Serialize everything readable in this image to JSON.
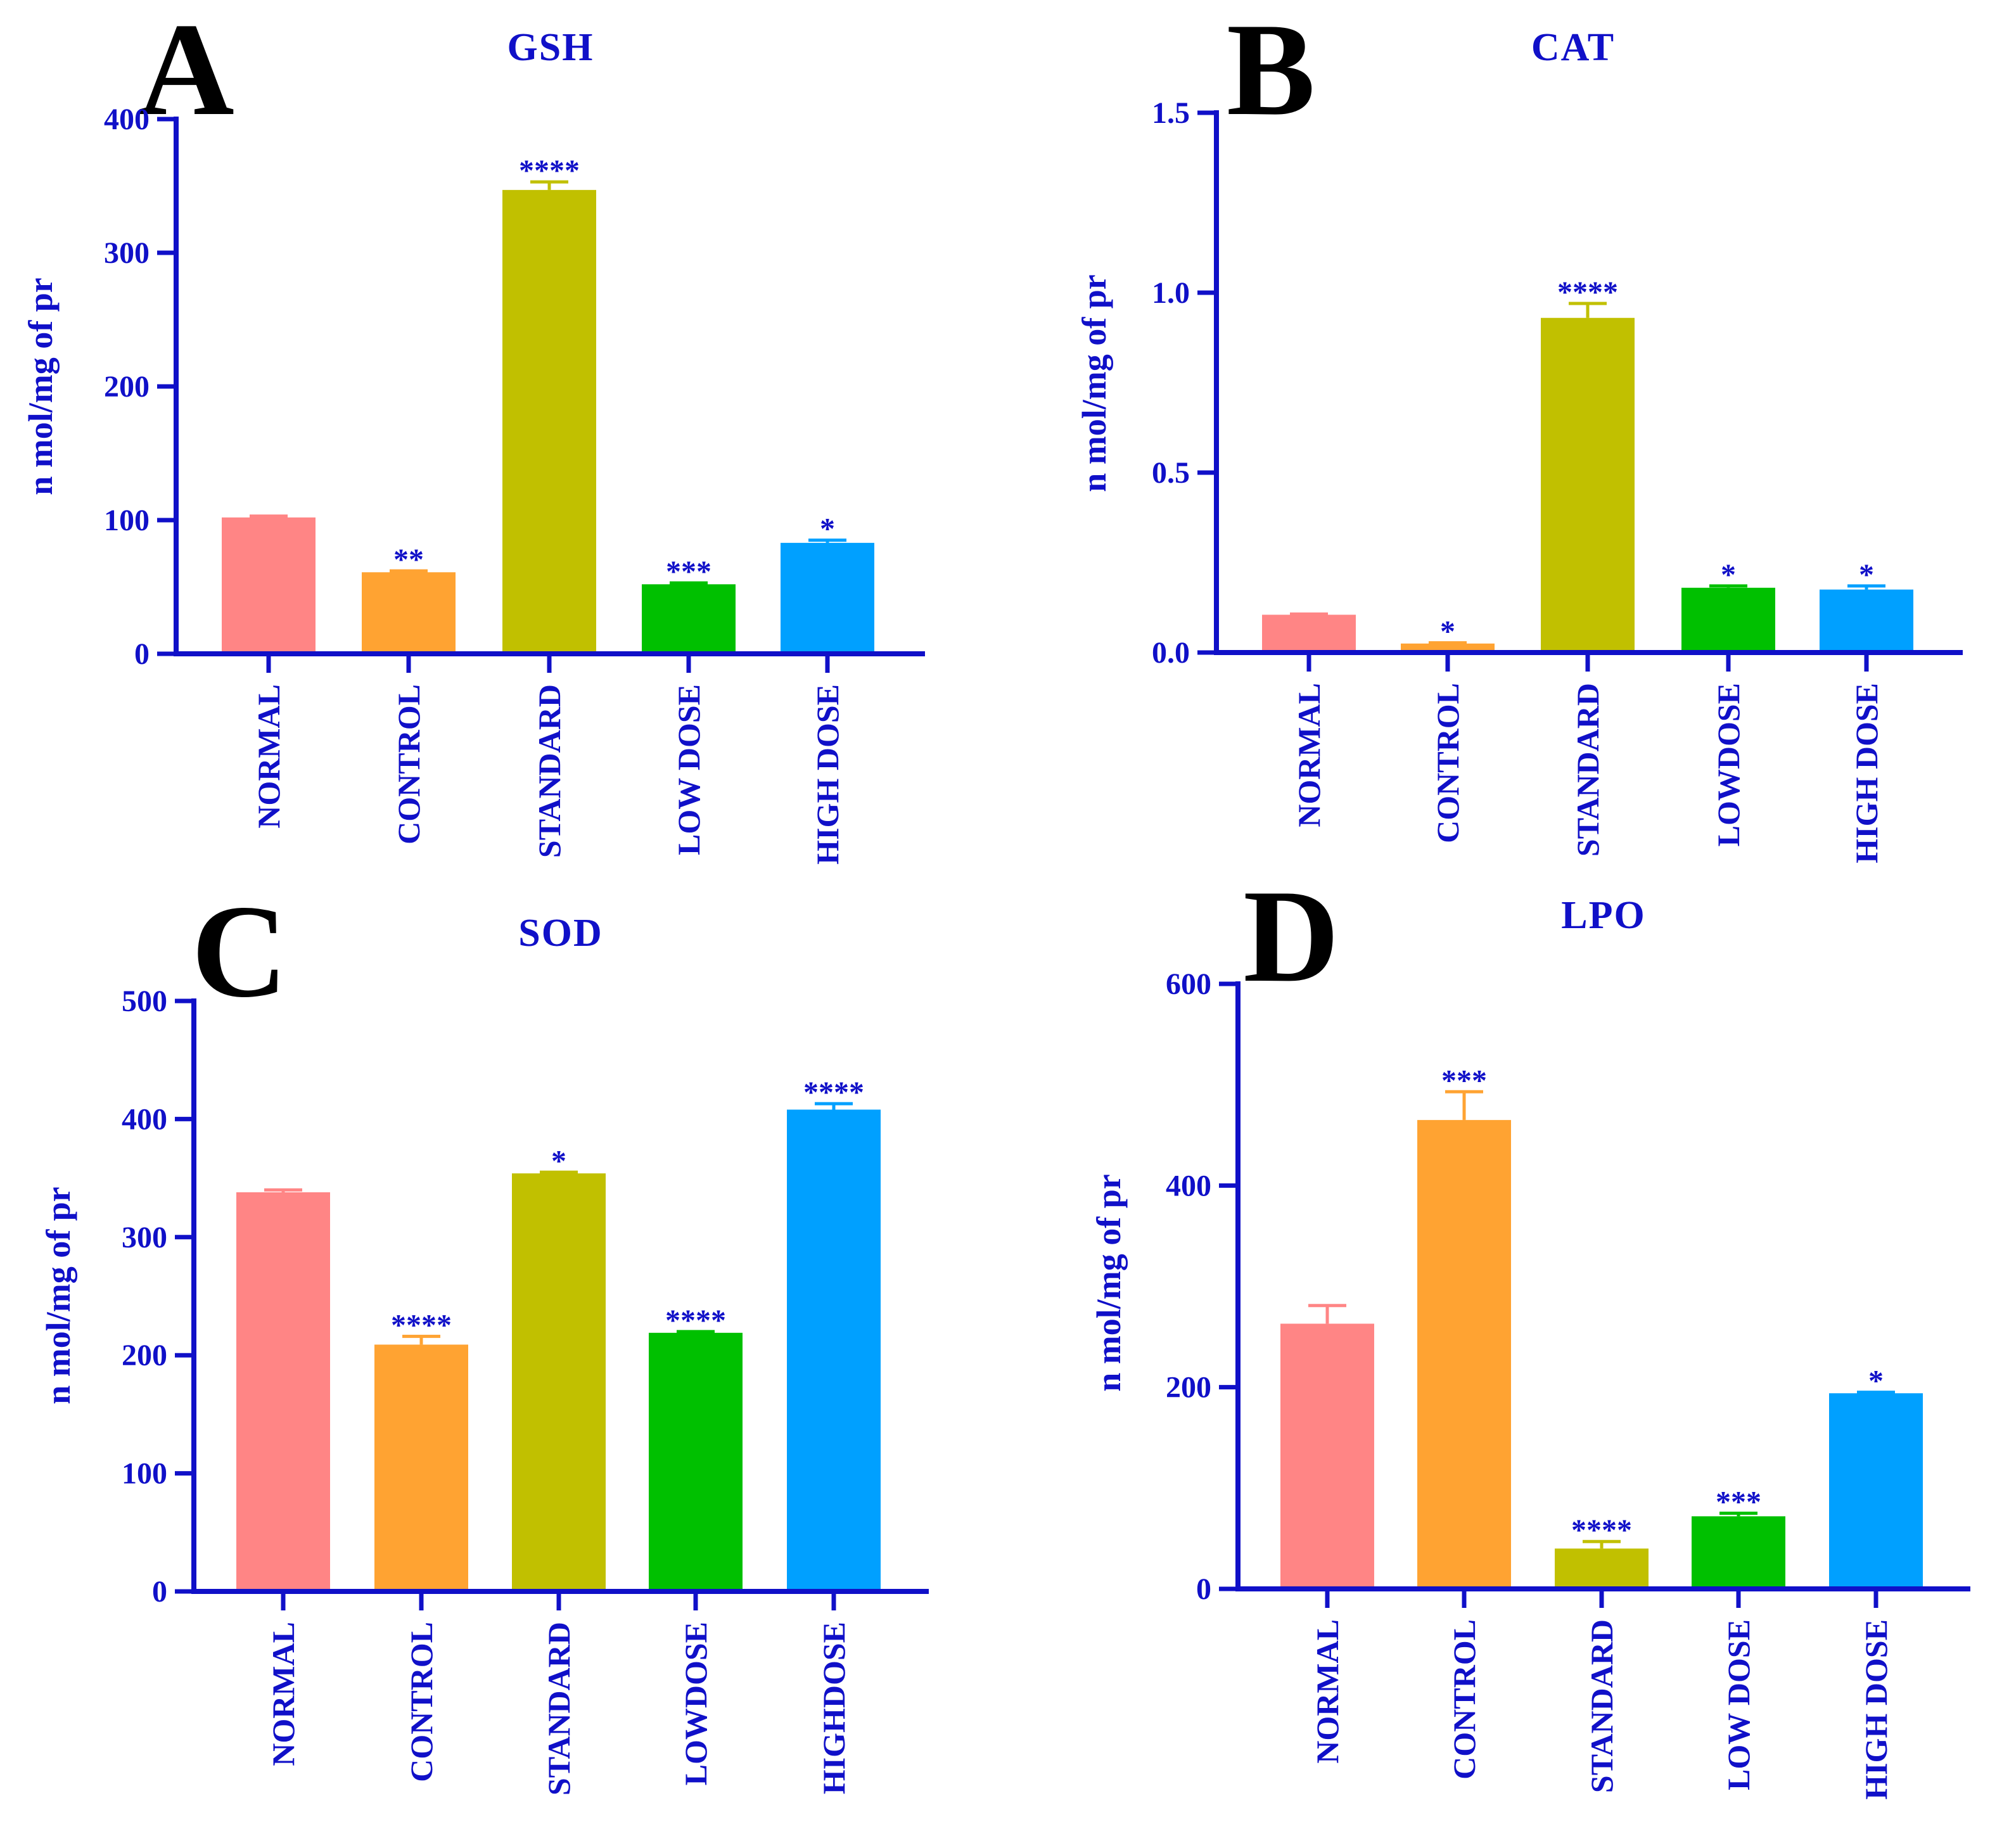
{
  "colors": {
    "axis": "#1010c8",
    "normal": "#ff8585",
    "control": "#ffa332",
    "standard": "#c1c000",
    "low_dose": "#00c000",
    "high_dose": "#00a0ff"
  },
  "chart_data": [
    {
      "panel": "A",
      "type": "bar",
      "title": "GSH",
      "ylabel": "n mol/mg of pr",
      "xlabel": "",
      "ylim": [
        0,
        400
      ],
      "yticks": [
        0,
        100,
        200,
        300,
        400
      ],
      "ytick_labels": [
        "0",
        "100",
        "200",
        "300",
        "400"
      ],
      "categories": [
        "NORMAL",
        "CONTROL",
        "STANDARD",
        "LOW DOSE",
        "HIGH DOSE"
      ],
      "values": [
        102,
        61,
        347,
        52,
        83
      ],
      "errors": [
        1,
        1,
        6,
        1,
        2
      ],
      "significance": [
        "",
        "**",
        "****",
        "***",
        "*"
      ],
      "grid": false
    },
    {
      "panel": "B",
      "type": "bar",
      "title": "CAT",
      "ylabel": "n mol/mg of pr",
      "xlabel": "",
      "ylim": [
        0,
        1.5
      ],
      "yticks": [
        0,
        0.5,
        1.0,
        1.5
      ],
      "ytick_labels": [
        "0.0",
        "0.5",
        "1.0",
        "1.5"
      ],
      "categories": [
        "NORMAL",
        "CONTROL",
        "STANDARD",
        "LOWDOSE",
        "HIGH DOSE"
      ],
      "values": [
        0.105,
        0.025,
        0.93,
        0.18,
        0.175
      ],
      "errors": [
        0.002,
        0.002,
        0.04,
        0.005,
        0.01
      ],
      "significance": [
        "",
        "*",
        "****",
        "*",
        "*"
      ],
      "grid": false
    },
    {
      "panel": "C",
      "type": "bar",
      "title": "SOD",
      "ylabel": "n mol/mg of pr",
      "xlabel": "",
      "ylim": [
        0,
        500
      ],
      "yticks": [
        0,
        100,
        200,
        300,
        400,
        500
      ],
      "ytick_labels": [
        "0",
        "100",
        "200",
        "300",
        "400",
        "500"
      ],
      "categories": [
        "NORMAL",
        "CONTROL",
        "STANDARD",
        "LOWDOSE",
        "HIGHDOSE"
      ],
      "values": [
        338,
        209,
        354,
        219,
        408
      ],
      "errors": [
        2,
        7,
        1,
        1,
        5
      ],
      "significance": [
        "",
        "****",
        "*",
        "****",
        "****"
      ],
      "grid": false
    },
    {
      "panel": "D",
      "type": "bar",
      "title": "LPO",
      "ylabel": "n mol/mg of pr",
      "xlabel": "",
      "ylim": [
        0,
        600
      ],
      "yticks": [
        0,
        200,
        400,
        600
      ],
      "ytick_labels": [
        "0",
        "200",
        "400",
        "600"
      ],
      "categories": [
        "NORMAL",
        "CONTROL",
        "STANDARD",
        "LOW DOSE",
        "HIGH DOSE"
      ],
      "values": [
        263,
        465,
        40,
        72,
        194
      ],
      "errors": [
        18,
        28,
        7,
        3,
        1
      ],
      "significance": [
        "",
        "***",
        "****",
        "***",
        "*"
      ],
      "grid": false
    }
  ]
}
